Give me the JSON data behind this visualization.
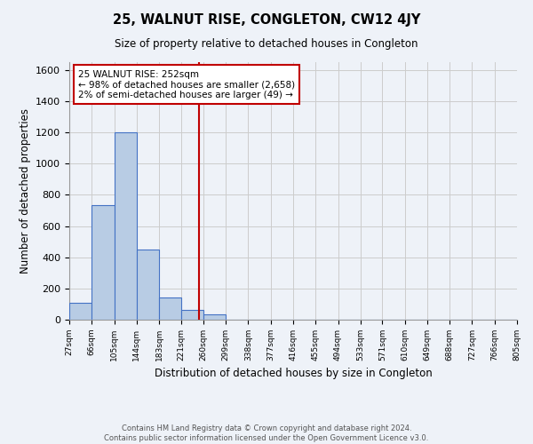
{
  "title": "25, WALNUT RISE, CONGLETON, CW12 4JY",
  "subtitle": "Size of property relative to detached houses in Congleton",
  "xlabel": "Distribution of detached houses by size in Congleton",
  "ylabel": "Number of detached properties",
  "footer_line1": "Contains HM Land Registry data © Crown copyright and database right 2024.",
  "footer_line2": "Contains public sector information licensed under the Open Government Licence v3.0.",
  "bin_edges": [
    27,
    66,
    105,
    144,
    183,
    221,
    260,
    299,
    338,
    377,
    416,
    455,
    494,
    533,
    571,
    610,
    649,
    688,
    727,
    766,
    805
  ],
  "bin_counts": [
    110,
    735,
    1200,
    450,
    145,
    60,
    35,
    0,
    0,
    0,
    0,
    0,
    0,
    0,
    0,
    0,
    0,
    0,
    0,
    0
  ],
  "bar_color": "#b8cce4",
  "bar_edge_color": "#4472c4",
  "property_line_x": 252,
  "property_line_color": "#c00000",
  "annotation_text_line1": "25 WALNUT RISE: 252sqm",
  "annotation_text_line2": "← 98% of detached houses are smaller (2,658)",
  "annotation_text_line3": "2% of semi-detached houses are larger (49) →",
  "annotation_box_color": "#ffffff",
  "annotation_box_edge_color": "#c00000",
  "ylim": [
    0,
    1650
  ],
  "yticks": [
    0,
    200,
    400,
    600,
    800,
    1000,
    1200,
    1400,
    1600
  ],
  "grid_color": "#cccccc",
  "bg_color": "#eef2f8"
}
